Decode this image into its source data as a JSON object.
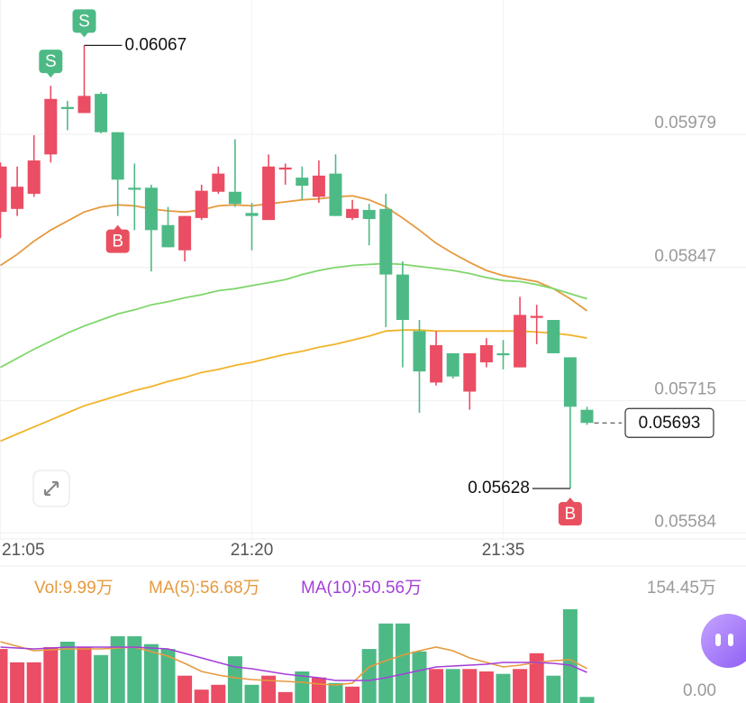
{
  "chart_data": [
    {
      "type": "candlestick",
      "categories": [
        "21:05",
        null,
        null,
        null,
        null,
        null,
        null,
        null,
        null,
        null,
        null,
        null,
        null,
        null,
        null,
        "21:20",
        null,
        null,
        null,
        null,
        null,
        null,
        null,
        null,
        null,
        null,
        null,
        null,
        null,
        null,
        "21:35",
        null,
        null,
        null,
        null,
        null
      ],
      "open": [
        0.05902,
        0.05905,
        0.0592,
        0.05959,
        0.06006,
        0.06,
        0.06019,
        0.05981,
        0.05926,
        0.05926,
        0.05889,
        0.05864,
        0.05896,
        0.05922,
        0.05922,
        0.05901,
        0.05894,
        0.05944,
        0.05936,
        0.05917,
        0.0594,
        0.05896,
        0.05904,
        0.05905,
        0.0584,
        0.05784,
        0.05733,
        0.05762,
        0.05724,
        0.05753,
        0.05762,
        0.05748,
        0.05797,
        0.05795,
        0.05758,
        0.05706
      ],
      "high": [
        0.05951,
        0.05947,
        0.05978,
        0.06027,
        0.06012,
        0.06067,
        0.06021,
        0.05981,
        0.0595,
        0.05929,
        0.05907,
        0.05898,
        0.05929,
        0.05947,
        0.05974,
        0.05911,
        0.05959,
        0.0595,
        0.05947,
        0.05953,
        0.05959,
        0.05914,
        0.0591,
        0.0592,
        0.05853,
        0.05795,
        0.05784,
        0.05762,
        0.05762,
        0.05777,
        0.05775,
        0.05818,
        0.0581,
        0.05795,
        0.05758,
        0.05709
      ],
      "low": [
        0.05876,
        0.05898,
        0.05917,
        0.05951,
        0.05983,
        0.06,
        0.0598,
        0.05898,
        0.05884,
        0.05843,
        0.05867,
        0.05853,
        0.05894,
        0.0592,
        0.05907,
        0.05864,
        0.05894,
        0.05929,
        0.05914,
        0.05911,
        0.05898,
        0.05894,
        0.05869,
        0.05788,
        0.05748,
        0.05703,
        0.0573,
        0.05737,
        0.05706,
        0.05748,
        0.05746,
        0.05748,
        0.05771,
        0.05762,
        0.05628,
        0.05691
      ],
      "close": [
        0.05947,
        0.05927,
        0.05953,
        0.06014,
        0.06004,
        0.06017,
        0.05981,
        0.05934,
        0.05924,
        0.05884,
        0.05867,
        0.05898,
        0.05923,
        0.0594,
        0.0591,
        0.05898,
        0.05947,
        0.05946,
        0.05928,
        0.05938,
        0.05898,
        0.05905,
        0.05895,
        0.0584,
        0.05795,
        0.05744,
        0.0577,
        0.05739,
        0.05762,
        0.0577,
        0.0576,
        0.058,
        0.05799,
        0.05762,
        0.05709,
        0.05693
      ],
      "up_color": "#ea4d64",
      "down_color": "#4dba86",
      "lines": [
        {
          "color": "#e69a3e",
          "values": [
            0.05849,
            0.0586,
            0.05873,
            0.05884,
            0.05893,
            0.05902,
            0.05907,
            0.05909,
            0.05908,
            0.05905,
            0.05903,
            0.05902,
            0.05904,
            0.05908,
            0.05909,
            0.05908,
            0.0591,
            0.05912,
            0.05914,
            0.05915,
            0.05917,
            0.05918,
            0.05914,
            0.05907,
            0.05896,
            0.05884,
            0.05871,
            0.05861,
            0.05852,
            0.05844,
            0.05839,
            0.05836,
            0.05833,
            0.05826,
            0.05816,
            0.05804
          ]
        },
        {
          "color": "#7fd66b",
          "values": [
            0.05748,
            0.05757,
            0.05766,
            0.05774,
            0.05782,
            0.05789,
            0.05795,
            0.05801,
            0.05805,
            0.0581,
            0.05813,
            0.05817,
            0.0582,
            0.05824,
            0.05826,
            0.05829,
            0.05832,
            0.05835,
            0.0584,
            0.05844,
            0.05847,
            0.05849,
            0.0585,
            0.05851,
            0.0585,
            0.05848,
            0.05846,
            0.05844,
            0.05841,
            0.05837,
            0.05834,
            0.05833,
            0.0583,
            0.05826,
            0.05821,
            0.05816
          ]
        },
        {
          "color": "#f0b429",
          "values": [
            0.05675,
            0.05682,
            0.05689,
            0.05696,
            0.05703,
            0.0571,
            0.05715,
            0.0572,
            0.05725,
            0.05729,
            0.05734,
            0.05738,
            0.05743,
            0.05746,
            0.0575,
            0.05753,
            0.05757,
            0.05761,
            0.05764,
            0.05768,
            0.05771,
            0.05775,
            0.05779,
            0.05784,
            0.05785,
            0.05785,
            0.05784,
            0.05784,
            0.05784,
            0.05784,
            0.05784,
            0.05784,
            0.05783,
            0.05782,
            0.0578,
            0.05777
          ]
        }
      ],
      "ylim": [
        0.05578,
        0.06112
      ],
      "yticks": [
        0.05979,
        0.05847,
        0.05715,
        0.05584
      ],
      "grid": true,
      "markers": [
        {
          "index": 3,
          "label": "S",
          "position": "above",
          "color": "#4dba86"
        },
        {
          "index": 5,
          "label": "S",
          "position": "above",
          "color": "#4dba86"
        },
        {
          "index": 7,
          "label": "B",
          "position": "below",
          "color": "#e9505f"
        },
        {
          "index": 34,
          "label": "B",
          "position": "below",
          "color": "#e9505f"
        }
      ],
      "annotations": [
        {
          "index": 5,
          "value": 0.06067,
          "side": "right"
        },
        {
          "index": 34,
          "value": 0.05628,
          "side": "left"
        }
      ],
      "last_price": 0.05693
    },
    {
      "type": "bar",
      "values": [
        89,
        67,
        67,
        92,
        101,
        92,
        79,
        110,
        110,
        97,
        89,
        45,
        22,
        30,
        77,
        30,
        45,
        18,
        52,
        42,
        33,
        27,
        89,
        131,
        131,
        85,
        56,
        56,
        56,
        52,
        48,
        56,
        82,
        45,
        154.45,
        9.99
      ],
      "lines": [
        {
          "color": "#e69a3e",
          "values": [
            101.0,
            93.6,
            86.1,
            87.6,
            89.1,
            89.1,
            89.1,
            90.6,
            92.1,
            84.6,
            77.2,
            65.3,
            52.0,
            46.0,
            41.6,
            38.6,
            37.1,
            35.6,
            34.2,
            31.2,
            29.7,
            32.7,
            59.4,
            69.8,
            78.7,
            86.1,
            92.1,
            86.1,
            74.3,
            66.8,
            59.4,
            62.4,
            66.8,
            69.8,
            71.3,
            56.68
          ]
        },
        {
          "color": "#a43fd8",
          "values": [
            92.1,
            90.6,
            89.1,
            90.6,
            92.1,
            92.1,
            92.1,
            92.1,
            92.1,
            90.6,
            89.1,
            81.7,
            74.3,
            66.8,
            59.4,
            56.4,
            52.0,
            47.5,
            44.6,
            41.6,
            37.1,
            37.1,
            37.1,
            41.6,
            47.5,
            53.5,
            59.4,
            60.9,
            62.4,
            63.9,
            66.8,
            66.8,
            66.8,
            65.3,
            62.4,
            50.56
          ]
        }
      ],
      "legend": [
        {
          "text": "Vol:9.99万",
          "color": "#e69a3e"
        },
        {
          "text": "MA(5):56.68万",
          "color": "#e69a3e"
        },
        {
          "text": "MA(10):50.56万",
          "color": "#a43fd8"
        }
      ],
      "ylim": [
        0,
        154.45
      ],
      "yticks": [
        {
          "value": 154.45,
          "label": "154.45万"
        },
        {
          "value": 0,
          "label": "0.00"
        }
      ]
    }
  ]
}
